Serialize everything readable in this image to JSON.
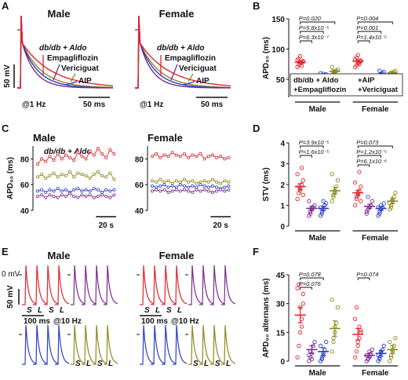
{
  "panel_letters": [
    "A",
    "B",
    "C",
    "D",
    "E",
    "F"
  ],
  "panel_a": [
    {
      "title": "Male",
      "labels": [
        "db/db + Aldo",
        "Empagliflozin",
        "Vericiguat",
        "AIP"
      ],
      "scale_v": "50 mV",
      "rate": "@1 Hz",
      "scale_t": "50 ms"
    },
    {
      "title": "Female",
      "labels": [
        "db/db + Aldo",
        "Empagliflozin",
        "Vericiguat",
        "AIP"
      ],
      "rate": "@1 Hz",
      "scale_t": "50 ms"
    }
  ],
  "panel_e": [
    {
      "title": "Male",
      "zero": "0 mV",
      "scale_v": "50 mV",
      "scale_t": "100 ms",
      "rate": "@10 Hz",
      "beats_top": [
        "S",
        "L",
        "S",
        "L"
      ],
      "beats_bottom": [
        "S",
        "L",
        "S",
        "L"
      ]
    },
    {
      "title": "Female",
      "scale_t": "100 ms",
      "rate": "@10 Hz",
      "beats_top": [
        "S",
        "L",
        "S",
        "L"
      ],
      "beats_bottom": [
        "S",
        "L",
        "S",
        "L"
      ]
    }
  ],
  "chart_data": [
    {
      "type": "dotplot",
      "ylabel": "APD₉₀ (ms)",
      "ylim": [
        20,
        150
      ],
      "yticks": [
        50,
        100,
        150
      ],
      "categories": [
        "Male",
        "Female"
      ],
      "legend": true,
      "series": [
        {
          "name": "db/db + Aldo",
          "color": "#e3232b",
          "points": [
            [
              70,
              74,
              76,
              78,
              80,
              82,
              84,
              88,
              72,
              79
            ],
            [
              70,
              73,
              76,
              78,
              80,
              83,
              86,
              90,
              75,
              81
            ]
          ],
          "mean": [
            78,
            80
          ],
          "sem": [
            2,
            2.5
          ]
        },
        {
          "name": "+Empagliflozin",
          "color": "#7b2a8c",
          "points": [
            [
              45,
              48,
              50,
              51,
              52,
              54,
              49,
              47
            ],
            [
              48,
              50,
              52,
              53,
              55,
              51,
              49,
              54
            ]
          ],
          "mean": [
            50,
            52
          ],
          "sem": [
            1.5,
            1
          ]
        },
        {
          "name": "+AIP",
          "color": "#2a3dc8",
          "points": [
            [
              52,
              54,
              56,
              57,
              58,
              60,
              55,
              59
            ],
            [
              52,
              55,
              58,
              60,
              62,
              56,
              64,
              54
            ]
          ],
          "mean": [
            57,
            58
          ],
          "sem": [
            1.5,
            2
          ]
        },
        {
          "name": "+Vericiguat",
          "color": "#8c8a1e",
          "points": [
            [
              56,
              60,
              62,
              64,
              66,
              70,
              63,
              58
            ],
            [
              55,
              58,
              60,
              62,
              64,
              59,
              61,
              57
            ]
          ],
          "mean": [
            63,
            60
          ],
          "sem": [
            2,
            1.5
          ]
        }
      ],
      "annotations": [
        {
          "category": 0,
          "groups": [
            0,
            1
          ],
          "label": "P=6.3x10⁻⁷"
        },
        {
          "category": 0,
          "groups": [
            0,
            2
          ],
          "label": "P=5.8x10⁻⁵"
        },
        {
          "category": 0,
          "groups": [
            0,
            3
          ],
          "label": "P=0.020"
        },
        {
          "category": 1,
          "groups": [
            0,
            1
          ],
          "label": "P=1.4x10⁻⁵"
        },
        {
          "category": 1,
          "groups": [
            0,
            2
          ],
          "label": "P=0.001"
        },
        {
          "category": 1,
          "groups": [
            0,
            3
          ],
          "label": "P=0.004"
        }
      ]
    },
    {
      "type": "line",
      "title": "Male",
      "ylabel": "APD₉₀ (ms)",
      "annotation": "db/db + Aldo",
      "annotation_color": "#e3232b",
      "ylim": [
        40,
        90
      ],
      "yticks": [
        40,
        60,
        80
      ],
      "xlim": [
        0,
        78
      ],
      "scalebar": {
        "value": 20,
        "label": "20 s"
      },
      "x": [
        0,
        4,
        8,
        12,
        16,
        20,
        24,
        28,
        32,
        36,
        40,
        44,
        48,
        52,
        56,
        60,
        64,
        68,
        72,
        76
      ],
      "series": [
        {
          "color": "#e3232b",
          "values": [
            76,
            80,
            78,
            82,
            79,
            84,
            80,
            83,
            81,
            79,
            85,
            82,
            80,
            86,
            83,
            88,
            84,
            81,
            87,
            84
          ]
        },
        {
          "color": "#8c8a1e",
          "values": [
            66,
            68,
            65,
            67,
            69,
            66,
            68,
            67,
            70,
            66,
            69,
            68,
            67,
            65,
            68,
            70,
            67,
            66,
            69,
            64
          ]
        },
        {
          "color": "#2a3dc8",
          "values": [
            55,
            56,
            54,
            56,
            55,
            57,
            55,
            56,
            54,
            56,
            57,
            55,
            56,
            55,
            57,
            56,
            54,
            56,
            55,
            56
          ]
        },
        {
          "color": "#7b2a8c",
          "values": [
            51,
            52,
            50,
            52,
            51,
            50,
            52,
            51,
            53,
            51,
            50,
            52,
            51,
            52,
            50,
            51,
            52,
            51,
            50,
            52
          ]
        }
      ]
    },
    {
      "type": "line",
      "title": "Female",
      "ylim": [
        40,
        90
      ],
      "yticks": [
        40,
        60,
        80
      ],
      "xlim": [
        0,
        78
      ],
      "scalebar": {
        "value": 20,
        "label": "20 s"
      },
      "x": [
        0,
        4,
        8,
        12,
        16,
        20,
        24,
        28,
        32,
        36,
        40,
        44,
        48,
        52,
        56,
        60,
        64,
        68,
        72,
        76
      ],
      "series": [
        {
          "color": "#e3232b",
          "values": [
            82,
            84,
            81,
            83,
            82,
            85,
            83,
            82,
            84,
            81,
            83,
            82,
            84,
            80,
            82,
            83,
            81,
            82,
            80,
            81
          ]
        },
        {
          "color": "#8c8a1e",
          "values": [
            63,
            62,
            64,
            62,
            63,
            61,
            63,
            62,
            64,
            62,
            63,
            61,
            62,
            63,
            62,
            64,
            62,
            61,
            63,
            62
          ]
        },
        {
          "color": "#2a3dc8",
          "values": [
            59,
            58,
            59,
            60,
            58,
            59,
            58,
            60,
            59,
            58,
            59,
            58,
            60,
            59,
            58,
            59,
            58,
            57,
            58,
            59
          ]
        },
        {
          "color": "#7b2a8c",
          "values": [
            55,
            56,
            55,
            56,
            54,
            55,
            56,
            55,
            56,
            55,
            54,
            56,
            55,
            56,
            55,
            54,
            55,
            56,
            55,
            56
          ]
        }
      ]
    },
    {
      "type": "dotplot",
      "ylabel": "STV (ms)",
      "ylim": [
        0,
        4
      ],
      "yticks": [
        0,
        1,
        2,
        3,
        4
      ],
      "categories": [
        "Male",
        "Female"
      ],
      "series": [
        {
          "color": "#e3232b",
          "points": [
            [
              1.3,
              1.6,
              1.8,
              2.0,
              2.2,
              2.5,
              1.9,
              1.7,
              2.8,
              1.5
            ],
            [
              1.0,
              1.3,
              1.5,
              1.7,
              1.9,
              2.1,
              1.4,
              1.6,
              2.6,
              1.2
            ]
          ],
          "mean": [
            1.9,
            1.6
          ],
          "sem": [
            0.15,
            0.12
          ]
        },
        {
          "color": "#7b2a8c",
          "points": [
            [
              0.5,
              0.7,
              0.8,
              0.9,
              1.0,
              1.2,
              0.6,
              0.9
            ],
            [
              0.6,
              0.8,
              0.9,
              1.0,
              1.2,
              0.7,
              1.4,
              0.9
            ]
          ],
          "mean": [
            0.85,
            0.95
          ],
          "sem": [
            0.1,
            0.1
          ]
        },
        {
          "color": "#2a3dc8",
          "points": [
            [
              0.5,
              0.7,
              0.8,
              1.0,
              1.1,
              0.9,
              0.6,
              1.2
            ],
            [
              0.5,
              0.7,
              0.8,
              0.9,
              1.1,
              0.9,
              0.6,
              1.0
            ]
          ],
          "mean": [
            0.85,
            0.85
          ],
          "sem": [
            0.1,
            0.08
          ]
        },
        {
          "color": "#8c8a1e",
          "points": [
            [
              1.2,
              1.5,
              1.7,
              1.9,
              2.2,
              2.5,
              1.4,
              1.6
            ],
            [
              0.8,
              1.0,
              1.2,
              1.4,
              1.6,
              1.1,
              0.9,
              1.3
            ]
          ],
          "mean": [
            1.7,
            1.2
          ],
          "sem": [
            0.15,
            0.12
          ]
        }
      ],
      "annotations": [
        {
          "category": 0,
          "groups": [
            0,
            1
          ],
          "label": "P=1.6x10⁻⁵"
        },
        {
          "category": 0,
          "groups": [
            0,
            2
          ],
          "label": "P=3.9x10⁻⁵"
        },
        {
          "category": 1,
          "groups": [
            0,
            1
          ],
          "label": "P=6.1x10⁻⁶"
        },
        {
          "category": 1,
          "groups": [
            0,
            2
          ],
          "label": "P=1.2x10⁻⁵"
        },
        {
          "category": 1,
          "groups": [
            0,
            3
          ],
          "label": "P=0.073"
        }
      ]
    },
    {
      "type": "dotplot",
      "ylabel": "APD₉₀ alternans (ms)",
      "ylim": [
        0,
        45
      ],
      "yticks": [
        0,
        15,
        30,
        45
      ],
      "categories": [
        "Male",
        "Female"
      ],
      "series": [
        {
          "color": "#e3232b",
          "points": [
            [
              2,
              8,
              15,
              22,
              30,
              38,
              40,
              28,
              18,
              35
            ],
            [
              2,
              5,
              8,
              12,
              16,
              22,
              28,
              10,
              18,
              15
            ]
          ],
          "mean": [
            24,
            14
          ],
          "sem": [
            4,
            3
          ]
        },
        {
          "color": "#7b2a8c",
          "points": [
            [
              0,
              2,
              4,
              8,
              10,
              3,
              5,
              1
            ],
            [
              0,
              1,
              2,
              4,
              6,
              3,
              1,
              5
            ]
          ],
          "mean": [
            6,
            3
          ],
          "sem": [
            2,
            1
          ]
        },
        {
          "color": "#2a3dc8",
          "points": [
            [
              0,
              1,
              3,
              6,
              10,
              8,
              2,
              4
            ],
            [
              0,
              2,
              4,
              6,
              8,
              3,
              1,
              5
            ]
          ],
          "mean": [
            5,
            4
          ],
          "sem": [
            2,
            1.5
          ]
        },
        {
          "color": "#8c8a1e",
          "points": [
            [
              5,
              10,
              15,
              20,
              28,
              32,
              12,
              18
            ],
            [
              0,
              2,
              5,
              8,
              12,
              10,
              3,
              6
            ]
          ],
          "mean": [
            17,
            6
          ],
          "sem": [
            4,
            2
          ]
        }
      ],
      "annotations": [
        {
          "category": 0,
          "groups": [
            0,
            1
          ],
          "label": "P=0.076"
        },
        {
          "category": 0,
          "groups": [
            0,
            2
          ],
          "label": "P=0.078"
        },
        {
          "category": 1,
          "groups": [
            0,
            1
          ],
          "label": "P=0.074"
        }
      ]
    }
  ]
}
